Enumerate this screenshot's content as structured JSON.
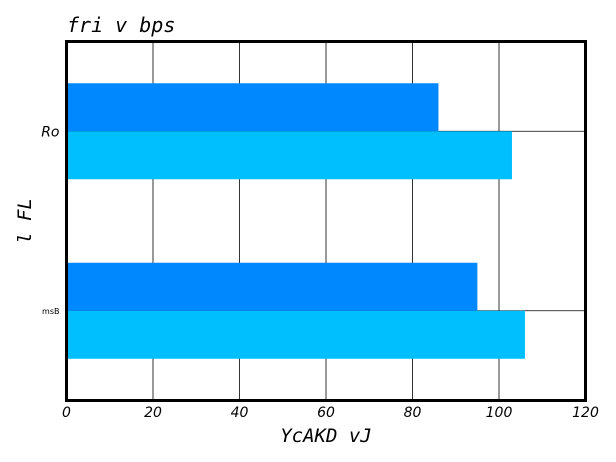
{
  "chart_data": {
    "type": "bar",
    "orientation": "horizontal",
    "title": "fri v bps",
    "xlabel": "YcAKD vJ",
    "ylabel": "l FL",
    "categories": [
      "Ro",
      "msB"
    ],
    "series": [
      {
        "color": "#0088ff",
        "values": [
          86,
          95
        ]
      },
      {
        "color": "#00bfff",
        "values": [
          103,
          106
        ]
      }
    ],
    "xlim": [
      0,
      120
    ],
    "xticks": [
      "0",
      "20",
      "40",
      "60",
      "80",
      "100",
      "120"
    ],
    "grid": true,
    "legend": "none"
  }
}
